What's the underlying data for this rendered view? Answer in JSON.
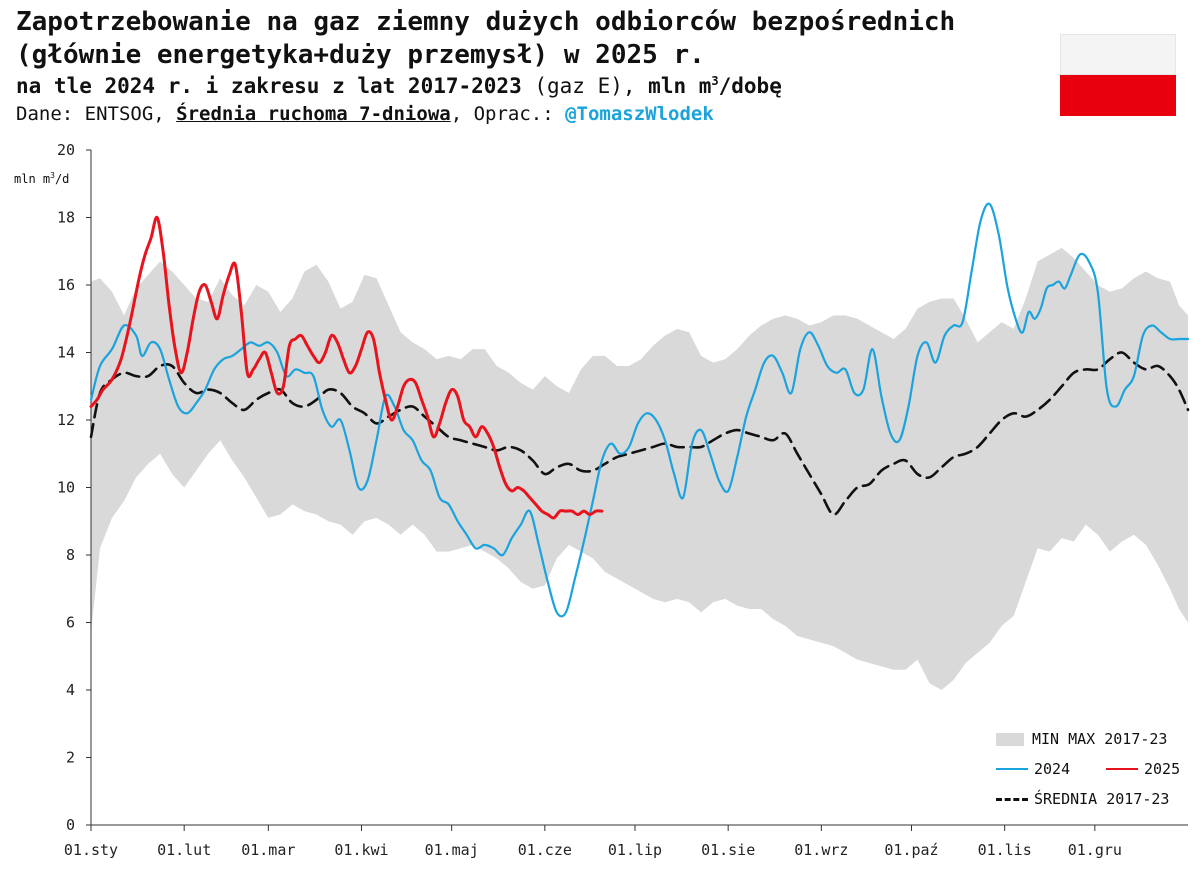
{
  "header": {
    "title_line1": "Zapotrzebowanie na gaz ziemny dużych odbiorców bezpośrednich",
    "title_line2": "(głównie energetyka+duży przemysł) w 2025 r.",
    "subtitle_bold": "na tle 2024 r. i zakresu z lat 2017-2023",
    "subtitle_normal": " (gaz E),",
    "subtitle_unit_bold_a": " mln m",
    "subtitle_unit_sup": "3",
    "subtitle_unit_bold_b": "/dobę",
    "source_prefix": "Dane: ENTSOG, ",
    "source_underlined": "Średnia ruchoma 7-dniowa",
    "source_middle": ", Oprac.: ",
    "source_handle": "@TomaszWlodek"
  },
  "flag": {
    "top_color": "#f4f4f4",
    "bottom_color": "#e8000f"
  },
  "chart_data": {
    "type": "line",
    "title": "Zapotrzebowanie na gaz ziemny dużych odbiorców bezpośrednich (głównie energetyka+duży przemysł) w 2025 r.",
    "ylabel_a": "mln m",
    "ylabel_sup": "3",
    "ylabel_b": "/d",
    "ylim": [
      0,
      20
    ],
    "yticks": [
      0,
      2,
      4,
      6,
      8,
      10,
      12,
      14,
      16,
      18,
      20
    ],
    "xlim": [
      1,
      366
    ],
    "xticks": [
      {
        "day": 1,
        "label": "01.sty"
      },
      {
        "day": 32,
        "label": "01.lut"
      },
      {
        "day": 60,
        "label": "01.mar"
      },
      {
        "day": 91,
        "label": "01.kwi"
      },
      {
        "day": 121,
        "label": "01.maj"
      },
      {
        "day": 152,
        "label": "01.cze"
      },
      {
        "day": 182,
        "label": "01.lip"
      },
      {
        "day": 213,
        "label": "01.sie"
      },
      {
        "day": 244,
        "label": "01.wrz"
      },
      {
        "day": 274,
        "label": "01.paź"
      },
      {
        "day": 305,
        "label": "01.lis"
      },
      {
        "day": 335,
        "label": "01.gru"
      }
    ],
    "grid": false,
    "legend_position": "bottom-right",
    "series": [
      {
        "name": "MIN MAX 2017-23",
        "kind": "band",
        "color": "#d9d9d9",
        "x": [
          1,
          4,
          8,
          12,
          16,
          20,
          24,
          28,
          32,
          36,
          40,
          44,
          48,
          52,
          56,
          60,
          64,
          68,
          72,
          76,
          80,
          84,
          88,
          92,
          96,
          100,
          104,
          108,
          112,
          116,
          120,
          124,
          128,
          132,
          136,
          140,
          144,
          148,
          152,
          156,
          160,
          164,
          168,
          172,
          176,
          180,
          184,
          188,
          192,
          196,
          200,
          204,
          208,
          212,
          216,
          220,
          224,
          228,
          232,
          236,
          240,
          244,
          248,
          252,
          256,
          260,
          264,
          268,
          272,
          276,
          280,
          284,
          288,
          292,
          296,
          300,
          304,
          308,
          312,
          316,
          320,
          324,
          328,
          332,
          336,
          340,
          344,
          348,
          352,
          356,
          360,
          363,
          366
        ],
        "max": [
          16.1,
          16.2,
          15.8,
          15.1,
          15.9,
          16.3,
          16.7,
          16.4,
          16.0,
          15.6,
          15.5,
          16.2,
          15.7,
          15.4,
          16.0,
          15.8,
          15.2,
          15.6,
          16.4,
          16.6,
          16.1,
          15.3,
          15.5,
          16.3,
          16.2,
          15.4,
          14.6,
          14.3,
          14.1,
          13.8,
          13.9,
          13.8,
          14.1,
          14.1,
          13.6,
          13.4,
          13.1,
          12.9,
          13.3,
          13.0,
          12.8,
          13.5,
          13.9,
          13.9,
          13.6,
          13.6,
          13.8,
          14.2,
          14.5,
          14.7,
          14.6,
          13.9,
          13.7,
          13.8,
          14.1,
          14.5,
          14.8,
          15.0,
          15.1,
          15.0,
          14.8,
          14.9,
          15.1,
          15.1,
          15.0,
          14.8,
          14.6,
          14.4,
          14.7,
          15.3,
          15.5,
          15.6,
          15.6,
          15.0,
          14.3,
          14.6,
          14.9,
          14.7,
          15.6,
          16.7,
          16.9,
          17.1,
          16.8,
          16.4,
          16.0,
          15.8,
          15.9,
          16.2,
          16.4,
          16.2,
          16.1,
          15.4,
          15.1
        ],
        "min": [
          5.7,
          8.2,
          9.1,
          9.6,
          10.3,
          10.7,
          11.0,
          10.4,
          10.0,
          10.5,
          11.0,
          11.4,
          10.8,
          10.3,
          9.7,
          9.1,
          9.2,
          9.5,
          9.3,
          9.2,
          9.0,
          8.9,
          8.6,
          9.0,
          9.1,
          8.9,
          8.6,
          8.9,
          8.6,
          8.1,
          8.1,
          8.2,
          8.3,
          8.1,
          7.9,
          7.6,
          7.2,
          7.0,
          7.1,
          7.9,
          8.3,
          8.1,
          7.9,
          7.5,
          7.3,
          7.1,
          6.9,
          6.7,
          6.6,
          6.7,
          6.6,
          6.3,
          6.6,
          6.7,
          6.5,
          6.4,
          6.4,
          6.1,
          5.9,
          5.6,
          5.5,
          5.4,
          5.3,
          5.1,
          4.9,
          4.8,
          4.7,
          4.6,
          4.6,
          4.9,
          4.2,
          4.0,
          4.3,
          4.8,
          5.1,
          5.4,
          5.9,
          6.2,
          7.2,
          8.2,
          8.1,
          8.5,
          8.4,
          8.9,
          8.6,
          8.1,
          8.4,
          8.6,
          8.3,
          7.7,
          7.0,
          6.4,
          6.0
        ]
      },
      {
        "name": "2024",
        "kind": "line",
        "color": "#1aa3dc",
        "x": [
          1,
          4,
          8,
          12,
          16,
          18,
          21,
          24,
          27,
          30,
          33,
          36,
          39,
          42,
          45,
          48,
          51,
          54,
          57,
          60,
          63,
          66,
          69,
          72,
          75,
          78,
          81,
          84,
          87,
          90,
          93,
          96,
          99,
          102,
          105,
          108,
          111,
          114,
          117,
          120,
          123,
          126,
          129,
          132,
          135,
          138,
          141,
          144,
          147,
          150,
          153,
          156,
          159,
          162,
          165,
          168,
          171,
          174,
          177,
          180,
          183,
          186,
          189,
          192,
          195,
          198,
          201,
          204,
          207,
          210,
          213,
          216,
          219,
          222,
          225,
          228,
          231,
          234,
          237,
          240,
          243,
          246,
          249,
          252,
          255,
          258,
          261,
          264,
          267,
          270,
          273,
          276,
          279,
          282,
          285,
          288,
          291,
          294,
          297,
          300,
          303,
          306,
          309,
          311,
          313,
          315,
          317,
          319,
          321,
          323,
          325,
          327,
          330,
          333,
          336,
          339,
          342,
          345,
          348,
          351,
          354,
          357,
          360,
          363,
          366
        ],
        "values": [
          12.6,
          13.6,
          14.1,
          14.8,
          14.5,
          13.9,
          14.3,
          14.1,
          13.2,
          12.4,
          12.2,
          12.5,
          12.9,
          13.5,
          13.8,
          13.9,
          14.1,
          14.3,
          14.2,
          14.3,
          14.0,
          13.3,
          13.5,
          13.4,
          13.3,
          12.3,
          11.8,
          12.0,
          11.1,
          10.0,
          10.2,
          11.4,
          12.7,
          12.4,
          11.7,
          11.4,
          10.8,
          10.5,
          9.7,
          9.5,
          9.0,
          8.6,
          8.2,
          8.3,
          8.2,
          8.0,
          8.5,
          8.9,
          9.3,
          8.3,
          7.2,
          6.3,
          6.3,
          7.3,
          8.4,
          9.6,
          10.8,
          11.3,
          11.0,
          11.2,
          11.9,
          12.2,
          12.0,
          11.4,
          10.4,
          9.7,
          11.3,
          11.7,
          11.0,
          10.2,
          9.9,
          10.9,
          12.1,
          12.9,
          13.7,
          13.9,
          13.4,
          12.8,
          14.1,
          14.6,
          14.2,
          13.6,
          13.4,
          13.5,
          12.8,
          12.9,
          14.1,
          12.7,
          11.6,
          11.4,
          12.4,
          13.9,
          14.3,
          13.7,
          14.5,
          14.8,
          14.9,
          16.4,
          17.9,
          18.4,
          17.5,
          15.9,
          14.9,
          14.6,
          15.2,
          15.0,
          15.3,
          15.9,
          16.0,
          16.1,
          15.9,
          16.3,
          16.9,
          16.7,
          15.8,
          12.9,
          12.4,
          12.9,
          13.3,
          14.5,
          14.8,
          14.6,
          14.4,
          14.4,
          14.4
        ],
        "values_note": ""
      },
      {
        "name": "2025",
        "kind": "line",
        "color": "#e8141d",
        "x": [
          1,
          3,
          5,
          8,
          11,
          14,
          17,
          19,
          21,
          23,
          25,
          27,
          29,
          31,
          33,
          35,
          37,
          39,
          41,
          43,
          45,
          47,
          49,
          51,
          53,
          55,
          57,
          59,
          61,
          63,
          65,
          67,
          69,
          71,
          73,
          75,
          77,
          79,
          81,
          83,
          85,
          87,
          89,
          91,
          93,
          95,
          97,
          99,
          101,
          103,
          105,
          107,
          109,
          111,
          113,
          115,
          117,
          119,
          121,
          123,
          125,
          127,
          129,
          131,
          133,
          135,
          137,
          139,
          141,
          143,
          145,
          147,
          149,
          151,
          153,
          155,
          157,
          159,
          161,
          163,
          165,
          167,
          169,
          171
        ],
        "values": [
          12.4,
          12.6,
          12.9,
          13.2,
          13.8,
          14.9,
          16.2,
          16.9,
          17.4,
          18.0,
          17.0,
          15.4,
          14.1,
          13.4,
          14.0,
          15.0,
          15.8,
          16.0,
          15.5,
          15.0,
          15.7,
          16.3,
          16.6,
          15.2,
          13.4,
          13.5,
          13.8,
          14.0,
          13.4,
          12.8,
          13.0,
          14.2,
          14.4,
          14.5,
          14.2,
          13.9,
          13.7,
          14.0,
          14.5,
          14.3,
          13.8,
          13.4,
          13.6,
          14.1,
          14.6,
          14.4,
          13.4,
          12.6,
          12.0,
          12.4,
          13.0,
          13.2,
          13.1,
          12.6,
          12.1,
          11.5,
          11.9,
          12.5,
          12.9,
          12.7,
          12.0,
          11.8,
          11.5,
          11.8,
          11.6,
          11.2,
          10.6,
          10.1,
          9.9,
          10.0,
          9.9,
          9.7,
          9.5,
          9.3,
          9.2,
          9.1,
          9.3,
          9.3,
          9.3,
          9.2,
          9.3,
          9.2,
          9.3,
          9.3
        ]
      },
      {
        "name": "ŚREDNIA 2017-23",
        "kind": "dashed",
        "color": "#111111",
        "x": [
          1,
          4,
          8,
          12,
          16,
          20,
          24,
          28,
          32,
          36,
          40,
          44,
          48,
          52,
          56,
          60,
          64,
          68,
          72,
          76,
          80,
          84,
          88,
          92,
          96,
          100,
          104,
          108,
          112,
          116,
          120,
          124,
          128,
          132,
          136,
          140,
          144,
          148,
          152,
          156,
          160,
          164,
          168,
          172,
          176,
          180,
          184,
          188,
          192,
          196,
          200,
          204,
          208,
          212,
          216,
          220,
          224,
          228,
          232,
          236,
          240,
          244,
          248,
          252,
          256,
          260,
          264,
          268,
          272,
          276,
          280,
          284,
          288,
          292,
          296,
          300,
          304,
          308,
          312,
          316,
          320,
          324,
          328,
          332,
          336,
          340,
          344,
          348,
          352,
          356,
          360,
          363,
          366
        ],
        "values": [
          11.5,
          12.8,
          13.2,
          13.4,
          13.3,
          13.3,
          13.6,
          13.6,
          13.1,
          12.8,
          12.9,
          12.8,
          12.5,
          12.3,
          12.6,
          12.8,
          12.9,
          12.5,
          12.4,
          12.6,
          12.9,
          12.8,
          12.4,
          12.2,
          11.9,
          12.1,
          12.3,
          12.4,
          12.1,
          11.8,
          11.5,
          11.4,
          11.3,
          11.2,
          11.1,
          11.2,
          11.1,
          10.8,
          10.4,
          10.6,
          10.7,
          10.5,
          10.5,
          10.7,
          10.9,
          11.0,
          11.1,
          11.2,
          11.3,
          11.2,
          11.2,
          11.2,
          11.4,
          11.6,
          11.7,
          11.6,
          11.5,
          11.4,
          11.6,
          11.0,
          10.4,
          9.8,
          9.2,
          9.6,
          10.0,
          10.1,
          10.5,
          10.7,
          10.8,
          10.4,
          10.3,
          10.6,
          10.9,
          11.0,
          11.2,
          11.6,
          12.0,
          12.2,
          12.1,
          12.3,
          12.6,
          13.0,
          13.4,
          13.5,
          13.5,
          13.8,
          14.0,
          13.7,
          13.5,
          13.6,
          13.3,
          12.9,
          12.3
        ]
      }
    ]
  },
  "legend": {
    "band_label": "MIN MAX 2017-23",
    "line2024_label": "2024",
    "line2025_label": "2025",
    "avg_label": "ŚREDNIA 2017-23"
  }
}
